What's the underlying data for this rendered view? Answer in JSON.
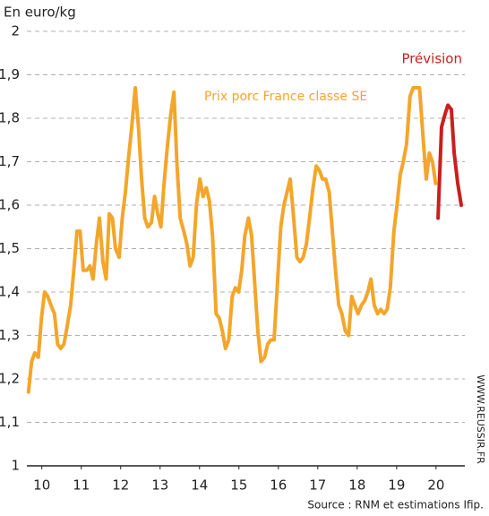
{
  "chart_data": {
    "type": "line",
    "y_label": "En euro/kg",
    "source": "Source : RNM et estimations Ifip.",
    "website": "WWW.REUSSIR.FR",
    "xlim": [
      9.62,
      20.73
    ],
    "xticks": [
      10,
      11,
      12,
      13,
      14,
      15,
      16,
      17,
      18,
      19,
      20
    ],
    "ylim": [
      1,
      2
    ],
    "yticks": [
      1,
      {
        "value": 1.1,
        "label": "1,1"
      },
      {
        "value": 1.2,
        "label": "1,2"
      },
      {
        "value": 1.3,
        "label": "1,3"
      },
      {
        "value": 1.4,
        "label": "1,4"
      },
      {
        "value": 1.5,
        "label": "1,5"
      },
      {
        "value": 1.6,
        "label": "1,6"
      },
      {
        "value": 1.7,
        "label": "1,7"
      },
      {
        "value": 1.8,
        "label": "1,8"
      },
      {
        "value": 1.9,
        "label": "1,9"
      },
      2
    ],
    "grid": true,
    "series": [
      {
        "name": "Prix porc France classe SE",
        "color": "#f3a62a",
        "x": [
          9.66,
          9.74,
          9.82,
          9.91,
          9.99,
          10.07,
          10.15,
          10.23,
          10.32,
          10.4,
          10.48,
          10.56,
          10.64,
          10.73,
          10.81,
          10.89,
          10.97,
          11.05,
          11.14,
          11.22,
          11.3,
          11.38,
          11.46,
          11.55,
          11.63,
          11.71,
          11.79,
          11.87,
          11.96,
          12.04,
          12.12,
          12.2,
          12.28,
          12.37,
          12.45,
          12.53,
          12.61,
          12.69,
          12.78,
          12.86,
          12.94,
          13.02,
          13.1,
          13.19,
          13.27,
          13.35,
          13.43,
          13.51,
          13.6,
          13.68,
          13.76,
          13.84,
          13.92,
          14.01,
          14.09,
          14.17,
          14.25,
          14.33,
          14.42,
          14.5,
          14.58,
          14.66,
          14.74,
          14.83,
          14.91,
          14.99,
          15.07,
          15.15,
          15.24,
          15.32,
          15.4,
          15.48,
          15.56,
          15.65,
          15.73,
          15.81,
          15.89,
          15.97,
          16.06,
          16.14,
          16.22,
          16.3,
          16.38,
          16.47,
          16.55,
          16.63,
          16.71,
          16.79,
          16.88,
          16.96,
          17.04,
          17.12,
          17.2,
          17.29,
          17.37,
          17.45,
          17.53,
          17.61,
          17.7,
          17.78,
          17.86,
          17.94,
          18.02,
          18.11,
          18.19,
          18.27,
          18.35,
          18.43,
          18.52,
          18.6,
          18.68,
          18.76,
          18.84,
          18.93,
          19.01,
          19.09,
          19.17,
          19.25,
          19.34,
          19.42,
          19.5,
          19.58,
          19.66,
          19.75,
          19.83,
          19.91,
          19.99
        ],
        "values": [
          1.17,
          1.24,
          1.26,
          1.25,
          1.34,
          1.4,
          1.39,
          1.37,
          1.35,
          1.28,
          1.27,
          1.28,
          1.32,
          1.37,
          1.45,
          1.54,
          1.54,
          1.45,
          1.45,
          1.46,
          1.43,
          1.51,
          1.57,
          1.47,
          1.43,
          1.58,
          1.57,
          1.5,
          1.48,
          1.57,
          1.63,
          1.71,
          1.78,
          1.87,
          1.78,
          1.66,
          1.57,
          1.55,
          1.56,
          1.62,
          1.58,
          1.55,
          1.65,
          1.74,
          1.81,
          1.86,
          1.69,
          1.57,
          1.54,
          1.51,
          1.46,
          1.48,
          1.6,
          1.66,
          1.62,
          1.64,
          1.61,
          1.53,
          1.35,
          1.34,
          1.31,
          1.27,
          1.29,
          1.39,
          1.41,
          1.4,
          1.45,
          1.53,
          1.57,
          1.53,
          1.42,
          1.31,
          1.24,
          1.25,
          1.28,
          1.29,
          1.29,
          1.41,
          1.55,
          1.6,
          1.63,
          1.66,
          1.58,
          1.48,
          1.47,
          1.48,
          1.51,
          1.57,
          1.64,
          1.69,
          1.68,
          1.66,
          1.66,
          1.63,
          1.54,
          1.45,
          1.37,
          1.35,
          1.31,
          1.3,
          1.39,
          1.37,
          1.35,
          1.37,
          1.38,
          1.4,
          1.43,
          1.37,
          1.35,
          1.36,
          1.35,
          1.36,
          1.41,
          1.54,
          1.6,
          1.67,
          1.7,
          1.74,
          1.85,
          1.87,
          1.87,
          1.87,
          1.77,
          1.66,
          1.72,
          1.7,
          1.65
        ]
      },
      {
        "name": "Prévision",
        "color": "#c8201f",
        "x": [
          20.05,
          20.14,
          20.23,
          20.3,
          20.39,
          20.46,
          20.55,
          20.64
        ],
        "values": [
          1.57,
          1.78,
          1.81,
          1.83,
          1.82,
          1.72,
          1.65,
          1.6
        ]
      }
    ]
  }
}
